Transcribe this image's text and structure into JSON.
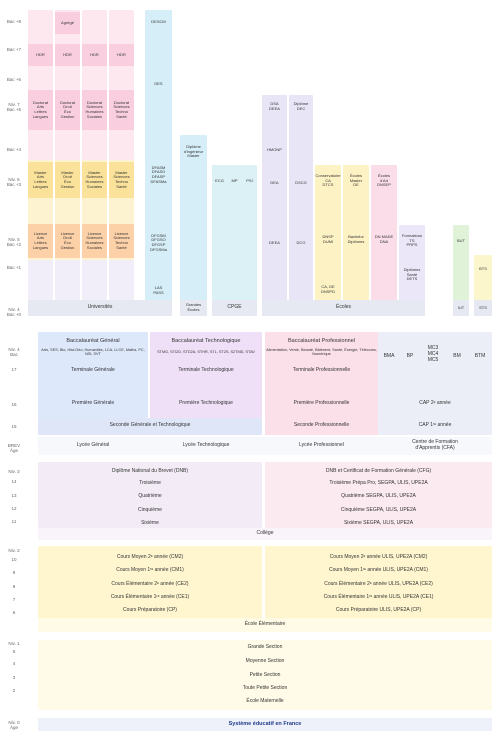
{
  "title": "Système éducatif en France",
  "superieur": {
    "levels": [
      "Bac +8",
      "Bac +7",
      "Bac +6",
      "Niv. 7\nBac +5",
      "Bac +4",
      "Niv. 6\nBac +3",
      "Niv. 5\nBac +2",
      "Bac +1",
      "Niv. 4\nBac +0"
    ],
    "cells": [
      "Agrégé",
      "HDR",
      "HDR",
      "HDR",
      "HDR",
      "Doctorat\nArts\nLettres\nLangues",
      "Doctorat\nDroit\nÉco\nGestion",
      "Doctorat\nSciences\nHumaines\nSociales",
      "Doctorat\nSciences\nTechno\nSanté",
      "Master\nArts\nLettres\nLangues",
      "Master\nDroit\nÉco\nGestion",
      "Master\nSciences\nHumaines\nSociales",
      "Master\nSciences\nTechno\nSanté",
      "Licence\nArts\nLettres\nLangues",
      "Licence\nDroit\nÉco\nGestion",
      "Licence\nSciences\nHumaines\nSociales",
      "Licence\nSciences\nTechno\nSanté",
      "Universités",
      "DESCM",
      "DES",
      "DFASM\nDFASO\nDFASP\nDFASMa",
      "DFGSM\nDFGSO\nDFGSP\nDFGSMa",
      "LAS\nPASS",
      "Diplôme\nd'ingénieur\nMaster",
      "Grandes\nÉcoles",
      "ECG",
      "MP",
      "PSI",
      "CPGE",
      "DSA\nDEEA",
      "HMONP",
      "DEA",
      "DEEA",
      "Diplôme\nDEC",
      "DSCG",
      "DCG",
      "Conservatoire\nCA\nDTCS",
      "DNSP\nDUMI",
      "CA, DE\nDNSPD",
      "Écoles\nMaster\nDE",
      "Bachelor\nDiplômes",
      "Écoles\nd'Art\nDNSEP",
      "DN MADE\nDNA",
      "Formations\nTS\nPRPS",
      "Diplômes\nSanté\nDETS",
      "Écoles",
      "BUT",
      "IUT",
      "BTS",
      "STS"
    ]
  },
  "lycee": {
    "levels": [
      "Niv. 4\nBac",
      "17",
      "16",
      "15",
      "BREV\nÂge"
    ],
    "cells": [
      "Baccalauréat Général",
      "Arts, SES, Bio, Hist-Géo, Humanités, LCA, LLCE, Maths, PC, NSI, SVT",
      "Terminale Générale",
      "Baccalauréat Technologique",
      "STMG, STI2D, STD2A, STHR, STL, ST2S, S2TMD, STAV",
      "Terminale Technologique",
      "Baccalauréat Professionnel",
      "Alimentation, Vente, Beauté, Bâtiment, Santé, Énergie, Télécoms, Numérique",
      "Terminale Professionnelle",
      "BMA",
      "BP",
      "MC3\nMC4\nMC5",
      "BM",
      "BTM",
      "Première Générale",
      "Première Technologique",
      "Première Professionnelle",
      "CAP 2ᵉ année",
      "Seconde Générale et Technologique",
      "Seconde Professionnelle",
      "CAP 1ʳᵉ année",
      "Lycée Général",
      "Lycée Technologique",
      "Lycée Professionnel",
      "Centre de Formation\nd'Apprentis (CFA)"
    ]
  },
  "college": {
    "levels": [
      "Niv. 3",
      "14",
      "13",
      "12",
      "11"
    ],
    "cells": [
      "Diplôme National du Brevet (DNB)",
      "Troisième",
      "Quatrième",
      "Cinquième",
      "Sixième",
      "DNB et Certificat de Formation Générale (CFG)",
      "Troisième Prépa Pro, SEGPA, ULIS, UPE2A",
      "Quatrième SEGPA, ULIS, UPE2A",
      "Cinquième SEGPA, ULIS, UPE2A",
      "Sixième SEGPA, ULIS, UPE2A",
      "Collège"
    ]
  },
  "elementaire": {
    "levels": [
      "Niv. 2",
      "10",
      "9",
      "8",
      "7",
      "6"
    ],
    "cells": [
      "Cours Moyen 2ᵉ année (CM2)",
      "Cours Moyen 1ʳᵉ année (CM1)",
      "Cours Élémentaire 2ᵉ année (CE2)",
      "Cours Élémentaire 1ʳᵉ année (CE1)",
      "Cours Préparatoire (CP)",
      "Cours Moyen 2ᵉ année ULIS, UPE2A (CM2)",
      "Cours Moyen 1ʳᵉ année ULIS, UPE2A (CM1)",
      "Cours Élémentaire 2ᵉ année ULIS, UPE2A (CE2)",
      "Cours Élémentaire 1ʳᵉ année ULIS, UPE2A (CE1)",
      "Cours Préparatoire ULIS, UPE2A (CP)",
      "École Élémentaire"
    ]
  },
  "maternelle": {
    "levels": [
      "Niv. 1",
      "5",
      "4",
      "3",
      "2"
    ],
    "cells": [
      "Grande Section",
      "Moyenne Section",
      "Petite Section",
      "Toute Petite Section",
      "École Maternelle"
    ]
  },
  "bottom_level": "Niv. 0\nÂge"
}
